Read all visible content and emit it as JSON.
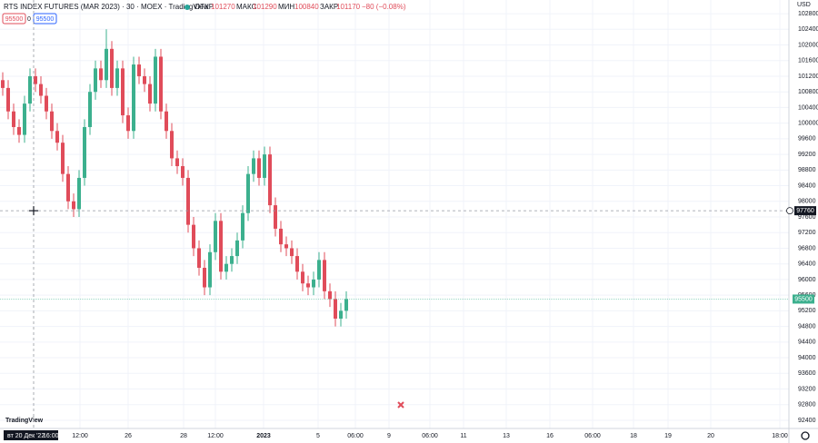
{
  "chart_data": {
    "type": "candlestick",
    "title": "RTS INDEX FUTURES (MAR 2023) · 30 · MOEX · TradingView",
    "legend": {
      "open_label": "ОТКР",
      "open": 101270,
      "high_label": "МАКС",
      "high": 101290,
      "low_label": "МИН",
      "low": 100840,
      "close_label": "ЗАКР",
      "close": 101170,
      "change": "−80 (−0.08%)"
    },
    "sell_price": 95500,
    "spread": 0,
    "buy_price": 95500,
    "currency": "USD",
    "up_color": "#3cb08e",
    "down_color": "#e04c5a",
    "open": [
      101100,
      100900,
      100300,
      99900,
      99700,
      100500,
      101200,
      101000,
      100700,
      100300,
      99800,
      99500,
      98700,
      98000,
      97800,
      98600,
      99900,
      100800,
      101400,
      101100,
      101900,
      100900,
      101400,
      100200,
      99800,
      101500,
      101200,
      101000,
      100500,
      101700,
      100300,
      99800,
      99100,
      98900,
      98600,
      97400,
      96800,
      96300,
      95800,
      96700,
      97500,
      96200,
      96400,
      96600,
      97000,
      97700,
      98700,
      99100,
      98600,
      99200,
      97900,
      97300,
      96900,
      96800,
      96600,
      96200,
      95900,
      95800,
      96000,
      96500,
      95700,
      95500,
      95000,
      95200
    ],
    "high": [
      101300,
      101100,
      100500,
      100100,
      100700,
      101400,
      101400,
      101200,
      100900,
      100500,
      100000,
      99700,
      98900,
      98200,
      98800,
      100100,
      101000,
      101600,
      101600,
      102400,
      102100,
      101600,
      101600,
      100400,
      101700,
      101700,
      101400,
      101200,
      101900,
      101900,
      100500,
      100000,
      99300,
      99100,
      98800,
      97600,
      97000,
      96500,
      96900,
      97700,
      97700,
      96600,
      96800,
      97200,
      97900,
      98900,
      99300,
      99300,
      99400,
      99400,
      98100,
      97500,
      97100,
      97000,
      96800,
      96400,
      96100,
      96200,
      96700,
      96700,
      95900,
      95700,
      95400,
      95700
    ],
    "low": [
      100700,
      100100,
      99700,
      99500,
      99500,
      100300,
      100800,
      100500,
      100100,
      99600,
      99300,
      98500,
      97800,
      97600,
      97600,
      98400,
      99700,
      100600,
      100900,
      100900,
      100700,
      100700,
      100000,
      99600,
      99600,
      101000,
      100800,
      100300,
      100300,
      100100,
      99600,
      98900,
      98700,
      98400,
      97200,
      96600,
      96100,
      95600,
      95600,
      96500,
      96000,
      96000,
      96200,
      96400,
      96800,
      97500,
      98500,
      98400,
      98400,
      97700,
      97100,
      96700,
      96600,
      96400,
      96000,
      95700,
      95600,
      95600,
      95800,
      95500,
      95300,
      94800,
      94800,
      95000
    ],
    "close": [
      100900,
      100300,
      99900,
      99700,
      100500,
      101200,
      101000,
      100700,
      100300,
      99800,
      99500,
      98700,
      98000,
      97800,
      98600,
      99900,
      100800,
      101400,
      101100,
      101900,
      100900,
      101400,
      100200,
      99800,
      101500,
      101200,
      101000,
      100500,
      101700,
      100300,
      99800,
      99100,
      98900,
      98600,
      97400,
      96800,
      96300,
      95800,
      96700,
      97500,
      96200,
      96400,
      96600,
      97000,
      97700,
      98700,
      99100,
      98600,
      99200,
      97900,
      97300,
      96900,
      96800,
      96600,
      96200,
      95900,
      95800,
      96000,
      96500,
      95700,
      95500,
      95000,
      95200,
      95500
    ],
    "ylim": [
      92190,
      103150
    ],
    "yticks": [
      92400,
      92800,
      93200,
      93600,
      94000,
      94400,
      94800,
      95200,
      95600,
      96000,
      96400,
      96800,
      97200,
      97600,
      98000,
      98400,
      98800,
      99200,
      99600,
      100000,
      100400,
      100800,
      101200,
      101600,
      102000,
      102400,
      102800
    ],
    "grid": true,
    "x_axis_labels": [
      "12:00",
      "26",
      "28",
      "12:00",
      "2023",
      "5",
      "06:00",
      "9",
      "06:00",
      "11",
      "13",
      "16",
      "06:00",
      "18",
      "19",
      "20",
      "18:00"
    ],
    "crosshair_price": 97760,
    "crosshair_date": "вт 20 Дек '22",
    "crosshair_time": "16:00",
    "last_price": 95500,
    "logo": "TradingView"
  }
}
